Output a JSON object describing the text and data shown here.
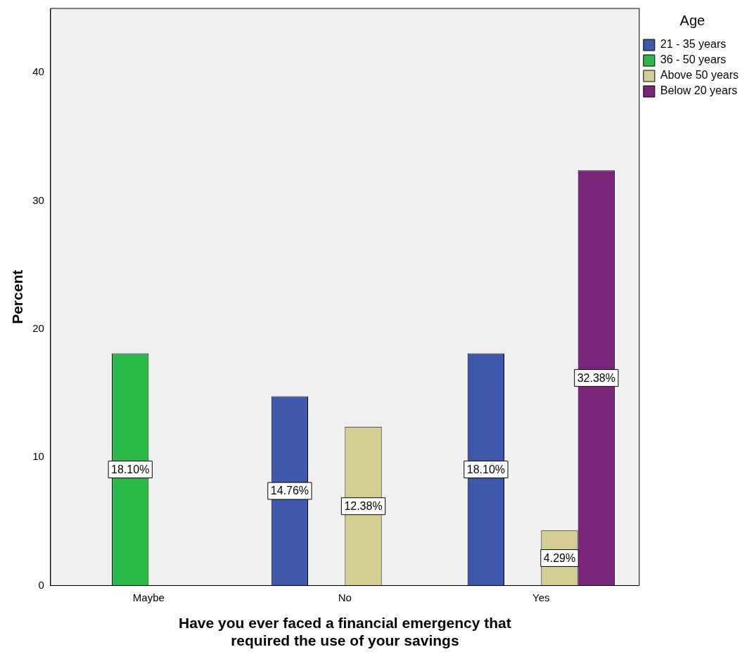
{
  "chart_data": {
    "type": "bar",
    "xlabel": "Have you ever faced a financial emergency that required the use of your savings",
    "ylabel": "Percent",
    "legend_title": "Age",
    "legend": "top right",
    "grid": false,
    "categories": [
      "Maybe",
      "No",
      "Yes"
    ],
    "ylim": [
      0,
      45
    ],
    "yticks": [
      0,
      10,
      20,
      30,
      40
    ],
    "series": [
      {
        "name": "21 - 35 years",
        "color": "#3e58ac",
        "values": [
          null,
          14.76,
          18.1
        ],
        "value_labels": [
          null,
          "14.76%",
          "18.10%"
        ]
      },
      {
        "name": "36 - 50 years",
        "color": "#2db84a",
        "values": [
          18.1,
          null,
          null
        ],
        "value_labels": [
          "18.10%",
          null,
          null
        ]
      },
      {
        "name": "Above 50 years",
        "color": "#d5ce94",
        "values": [
          null,
          12.38,
          4.29
        ],
        "value_labels": [
          null,
          "12.38%",
          "4.29%"
        ]
      },
      {
        "name": "Below 20 years",
        "color": "#7a2479",
        "values": [
          null,
          null,
          32.38
        ],
        "value_labels": [
          null,
          null,
          "32.38%"
        ]
      }
    ]
  }
}
